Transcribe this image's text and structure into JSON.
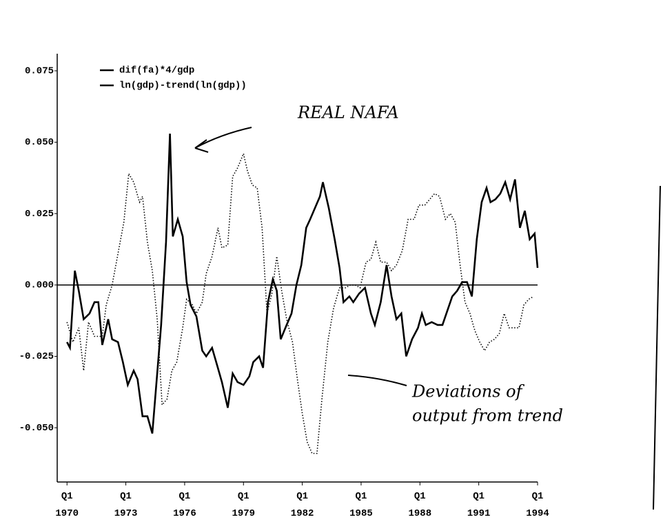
{
  "chart_data": {
    "type": "line",
    "series": [
      {
        "name": "dif(fa)*4/gdp",
        "color": "#000000",
        "dash": "solid",
        "x": [
          1970.0,
          1970.15,
          1970.4,
          1970.6,
          1970.85,
          1971.15,
          1971.4,
          1971.6,
          1971.8,
          1972.1,
          1972.3,
          1972.6,
          1972.85,
          1973.1,
          1973.4,
          1973.6,
          1973.85,
          1974.1,
          1974.35,
          1974.6,
          1974.8,
          1975.05,
          1975.25,
          1975.4,
          1975.65,
          1975.9,
          1976.1,
          1976.3,
          1976.6,
          1976.9,
          1977.1,
          1977.4,
          1977.65,
          1977.9,
          1978.2,
          1978.45,
          1978.7,
          1979.0,
          1979.3,
          1979.5,
          1979.8,
          1980.0,
          1980.25,
          1980.5,
          1980.7,
          1980.9,
          1981.2,
          1981.45,
          1981.7,
          1981.95,
          1982.2,
          1982.4,
          1982.65,
          1982.9,
          1983.05,
          1983.35,
          1983.65,
          1983.9,
          1984.1,
          1984.4,
          1984.6,
          1984.9,
          1985.2,
          1985.5,
          1985.7,
          1986.0,
          1986.3,
          1986.55,
          1986.8,
          1987.05,
          1987.3,
          1987.6,
          1987.9,
          1988.1,
          1988.3,
          1988.6,
          1988.9,
          1989.15,
          1989.4,
          1989.65,
          1989.9,
          1990.15,
          1990.4,
          1990.65,
          1990.9,
          1991.15,
          1991.4,
          1991.6,
          1991.85,
          1992.1,
          1992.35,
          1992.6,
          1992.85,
          1993.1,
          1993.35,
          1993.6,
          1993.85,
          1994.0
        ],
        "values": [
          -0.02,
          -0.022,
          0.005,
          -0.002,
          -0.012,
          -0.01,
          -0.006,
          -0.006,
          -0.021,
          -0.012,
          -0.019,
          -0.02,
          -0.027,
          -0.035,
          -0.03,
          -0.033,
          -0.046,
          -0.046,
          -0.052,
          -0.031,
          -0.014,
          0.015,
          0.053,
          0.017,
          0.023,
          0.017,
          0.001,
          -0.007,
          -0.011,
          -0.023,
          -0.025,
          -0.022,
          -0.028,
          -0.034,
          -0.043,
          -0.031,
          -0.034,
          -0.035,
          -0.032,
          -0.027,
          -0.025,
          -0.029,
          -0.006,
          0.002,
          -0.002,
          -0.019,
          -0.014,
          -0.01,
          0.0,
          0.007,
          0.02,
          0.023,
          0.027,
          0.031,
          0.036,
          0.027,
          0.016,
          0.006,
          -0.006,
          -0.004,
          -0.006,
          -0.003,
          -0.001,
          -0.01,
          -0.014,
          -0.006,
          0.007,
          -0.004,
          -0.012,
          -0.01,
          -0.025,
          -0.019,
          -0.015,
          -0.01,
          -0.014,
          -0.013,
          -0.014,
          -0.014,
          -0.009,
          -0.004,
          -0.002,
          0.001,
          0.001,
          -0.004,
          0.016,
          0.029,
          0.034,
          0.029,
          0.03,
          0.032,
          0.036,
          0.03,
          0.037,
          0.02,
          0.026,
          0.016,
          0.018,
          0.006
        ]
      },
      {
        "name": "ln(gdp)-trend(ln(gdp))",
        "color": "#000000",
        "dash": "dotted",
        "x": [
          1970.0,
          1970.3,
          1970.6,
          1970.85,
          1971.1,
          1971.4,
          1971.8,
          1972.0,
          1972.3,
          1972.6,
          1972.9,
          1973.15,
          1973.4,
          1973.7,
          1973.85,
          1974.1,
          1974.35,
          1974.6,
          1974.85,
          1975.1,
          1975.35,
          1975.6,
          1975.9,
          1976.1,
          1976.4,
          1976.6,
          1976.9,
          1977.1,
          1977.4,
          1977.7,
          1977.9,
          1978.2,
          1978.45,
          1978.7,
          1979.0,
          1979.2,
          1979.45,
          1979.7,
          1979.95,
          1980.2,
          1980.45,
          1980.7,
          1980.95,
          1981.2,
          1981.5,
          1981.75,
          1982.0,
          1982.25,
          1982.5,
          1982.75,
          1983.0,
          1983.3,
          1983.6,
          1983.9,
          1984.2,
          1984.45,
          1984.7,
          1984.95,
          1985.25,
          1985.5,
          1985.75,
          1986.0,
          1986.3,
          1986.55,
          1986.8,
          1987.1,
          1987.4,
          1987.7,
          1987.95,
          1988.25,
          1988.5,
          1988.75,
          1989.0,
          1989.3,
          1989.55,
          1989.8,
          1990.05,
          1990.3,
          1990.55,
          1990.8,
          1991.05,
          1991.3,
          1991.55,
          1991.8,
          1992.05,
          1992.3,
          1992.55,
          1992.8,
          1993.05,
          1993.3,
          1993.55,
          1993.8
        ],
        "values": [
          -0.013,
          -0.02,
          -0.015,
          -0.03,
          -0.013,
          -0.018,
          -0.018,
          -0.007,
          0.0,
          0.011,
          0.022,
          0.039,
          0.036,
          0.029,
          0.031,
          0.015,
          0.005,
          -0.012,
          -0.042,
          -0.04,
          -0.03,
          -0.027,
          -0.015,
          -0.005,
          -0.007,
          -0.01,
          -0.006,
          0.004,
          0.01,
          0.02,
          0.013,
          0.014,
          0.038,
          0.041,
          0.046,
          0.04,
          0.035,
          0.034,
          0.02,
          -0.01,
          -0.003,
          0.01,
          -0.002,
          -0.012,
          -0.02,
          -0.033,
          -0.045,
          -0.055,
          -0.059,
          -0.059,
          -0.04,
          -0.02,
          -0.008,
          -0.001,
          -0.001,
          0.0,
          0.0,
          -0.001,
          0.008,
          0.009,
          0.015,
          0.008,
          0.008,
          0.005,
          0.007,
          0.012,
          0.023,
          0.023,
          0.028,
          0.028,
          0.03,
          0.032,
          0.031,
          0.023,
          0.025,
          0.022,
          0.007,
          -0.006,
          -0.01,
          -0.016,
          -0.02,
          -0.023,
          -0.02,
          -0.019,
          -0.017,
          -0.01,
          -0.015,
          -0.015,
          -0.015,
          -0.007,
          -0.005,
          -0.004
        ]
      }
    ],
    "xlim": [
      1969.5,
      1994.0
    ],
    "xticks": [
      {
        "value": 1970,
        "label": "Q1\n1970"
      },
      {
        "value": 1973,
        "label": "Q1\n1973"
      },
      {
        "value": 1976,
        "label": "Q1\n1976"
      },
      {
        "value": 1979,
        "label": "Q1\n1979"
      },
      {
        "value": 1982,
        "label": "Q1\n1982"
      },
      {
        "value": 1985,
        "label": "Q1\n1985"
      },
      {
        "value": 1988,
        "label": "Q1\n1988"
      },
      {
        "value": 1991,
        "label": "Q1\n1991"
      },
      {
        "value": 1994,
        "label": "Q1\n1994"
      }
    ],
    "ylim": [
      -0.069,
      0.081
    ],
    "yticks": [
      {
        "value": 0.075,
        "label": "0.075"
      },
      {
        "value": 0.05,
        "label": "0.050"
      },
      {
        "value": 0.025,
        "label": "0.025"
      },
      {
        "value": 0,
        "label": "0.000"
      },
      {
        "value": -0.025,
        "label": "-0.025"
      },
      {
        "value": -0.05,
        "label": "-0.050"
      }
    ],
    "reference_line": 0,
    "annotations": [
      "REAL NAFA",
      "Deviations of",
      "output from trend"
    ],
    "legend": "top-left"
  }
}
